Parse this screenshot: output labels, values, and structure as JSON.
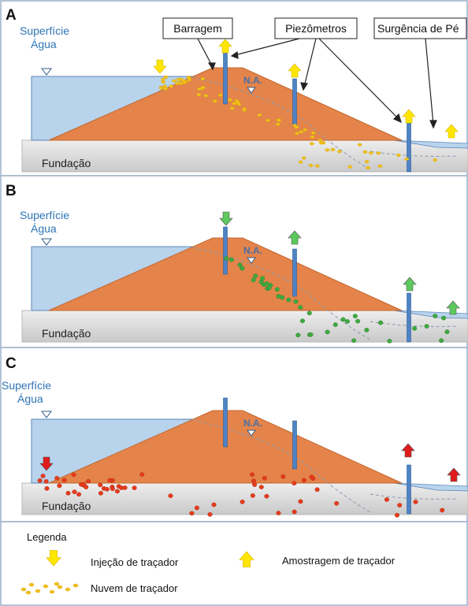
{
  "panels": [
    {
      "letter": "A",
      "water_label_1": "Superfície",
      "water_label_2": "Água",
      "na_label": "N.A.",
      "foundation_label": "Fundação"
    },
    {
      "letter": "B",
      "water_label_1": "Superfície",
      "water_label_2": "Água",
      "na_label": "N.A.",
      "foundation_label": "Fundação"
    },
    {
      "letter": "C",
      "water_label_1": "Superfície",
      "water_label_2": "Água",
      "na_label": "N.A.",
      "foundation_label": "Fundação"
    }
  ],
  "callouts": {
    "dam": "Barragem",
    "piezometers": "Piezômetros",
    "seepage": "Surgência de Pé"
  },
  "legend": {
    "title": "Legenda",
    "injection": "Injeção de traçador",
    "sampling": "Amostragem de traçador",
    "cloud": "Nuvem de traçador"
  },
  "colors": {
    "water": "#b8d3ec",
    "water_stroke": "#5b86b6",
    "dam": "#e4844a",
    "dam_stroke": "#c0662f",
    "foundation": "#d9d9d9",
    "piezometer": "#4f83c4",
    "label_blue": "#2e74b5",
    "tracer_a": "#f2c21a",
    "tracer_b": "#3faa3f",
    "tracer_c": "#e63b1e",
    "arrow_yellow": "#ffe600",
    "arrow_green": "#5cc95c",
    "arrow_red": "#e01b1b"
  },
  "panel_tracers": [
    {
      "injection_color": "arrow_yellow",
      "sampling_color": "arrow_yellow",
      "cloud_color": "tracer_a"
    },
    {
      "injection_color": "arrow_green",
      "sampling_color": "arrow_green",
      "cloud_color": "tracer_b"
    },
    {
      "injection_color": "arrow_red",
      "sampling_color": "arrow_red",
      "cloud_color": "tracer_c"
    }
  ]
}
